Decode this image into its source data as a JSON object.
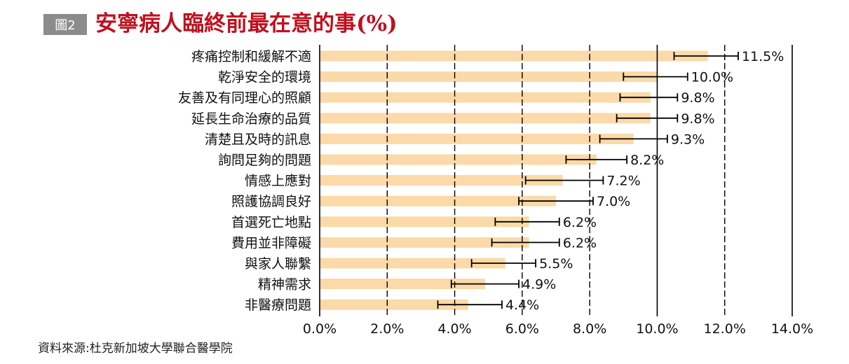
{
  "figure_label": "圖2",
  "title": "安寧病人臨終前最在意的事(%)",
  "source": "資料來源:杜克新加坡大學聯合醫學院",
  "colors": {
    "bar": "#fcd9a8",
    "title": "#c0101e",
    "label_box": "#8c8c8c",
    "grid": "#000000",
    "error_bar": "#000000"
  },
  "chart_data": {
    "type": "bar",
    "orientation": "horizontal",
    "title": "安寧病人臨終前最在意的事(%)",
    "xlabel": "",
    "ylabel": "",
    "xlim": [
      0,
      14
    ],
    "x_ticks": [
      0,
      2,
      4,
      6,
      8,
      10,
      12,
      14
    ],
    "x_tick_labels": [
      "0.0%",
      "2.0%",
      "4.0%",
      "6.0%",
      "8.0%",
      "10.0%",
      "12.0%",
      "14.0%"
    ],
    "grid": "vertical",
    "categories": [
      "疼痛控制和緩解不適",
      "乾淨安全的環境",
      "友善及有同理心的照顧",
      "延長生命治療的品質",
      "清楚且及時的訊息",
      "詢問足夠的問題",
      "情感上應對",
      "照護協調良好",
      "首選死亡地點",
      "費用並非障礙",
      "與家人聯繫",
      "精神需求",
      "非醫療問題"
    ],
    "values": [
      11.5,
      10.0,
      9.8,
      9.8,
      9.3,
      8.2,
      7.2,
      7.0,
      6.2,
      6.2,
      5.5,
      4.9,
      4.4
    ],
    "value_labels": [
      "11.5%",
      "10.0%",
      "9.8%",
      "9.8%",
      "9.3%",
      "8.2%",
      "7.2%",
      "7.0%",
      "6.2%",
      "6.2%",
      "5.5%",
      "4.9%",
      "4.4%"
    ],
    "error_bars": [
      [
        10.5,
        12.4
      ],
      [
        9.0,
        10.9
      ],
      [
        8.9,
        10.6
      ],
      [
        8.8,
        10.6
      ],
      [
        8.3,
        10.3
      ],
      [
        7.3,
        9.1
      ],
      [
        6.1,
        8.4
      ],
      [
        5.9,
        8.1
      ],
      [
        5.2,
        7.1
      ],
      [
        5.1,
        7.1
      ],
      [
        4.5,
        6.4
      ],
      [
        3.9,
        5.9
      ],
      [
        3.5,
        5.4
      ]
    ]
  }
}
